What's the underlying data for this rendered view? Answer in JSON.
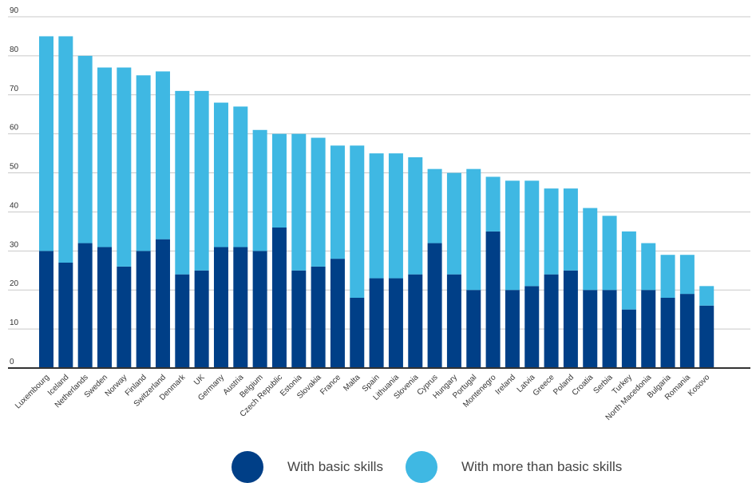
{
  "chart_data": {
    "type": "bar",
    "stacked": true,
    "title": "",
    "xlabel": "",
    "ylabel": "",
    "ylim": [
      0,
      90
    ],
    "yticks": [
      0,
      10,
      20,
      30,
      40,
      50,
      60,
      70,
      80,
      90
    ],
    "grid": true,
    "legend_position": "bottom",
    "categories": [
      "Luxembourg",
      "Iceland",
      "Netherlands",
      "Sweden",
      "Norway",
      "Finland",
      "Switzerland",
      "Denmark",
      "UK",
      "Germany",
      "Austria",
      "Belgium",
      "Czech Republic",
      "Estonia",
      "Slovakia",
      "France",
      "Malta",
      "Spain",
      "Lithuania",
      "Slovenia",
      "Cyprus",
      "Hungary",
      "Portugal",
      "Montenegro",
      "Ireland",
      "Latvia",
      "Greece",
      "Poland",
      "Croatia",
      "Serbia",
      "Turkey",
      "North Macedonia",
      "Bulgaria",
      "Romania",
      "Kosovo"
    ],
    "series": [
      {
        "name": "With basic skills",
        "color": "#003f87",
        "values": [
          30,
          27,
          32,
          31,
          26,
          30,
          33,
          24,
          25,
          31,
          31,
          30,
          36,
          25,
          26,
          28,
          18,
          23,
          23,
          24,
          32,
          24,
          20,
          35,
          20,
          21,
          24,
          25,
          20,
          20,
          15,
          20,
          18,
          19,
          16
        ]
      },
      {
        "name": "With more than basic skills",
        "color": "#3fb8e3",
        "values": [
          55,
          58,
          48,
          46,
          51,
          45,
          43,
          47,
          46,
          37,
          36,
          31,
          24,
          35,
          33,
          29,
          39,
          32,
          32,
          30,
          19,
          26,
          31,
          14,
          28,
          27,
          22,
          21,
          21,
          19,
          20,
          12,
          11,
          10,
          5
        ]
      }
    ]
  }
}
